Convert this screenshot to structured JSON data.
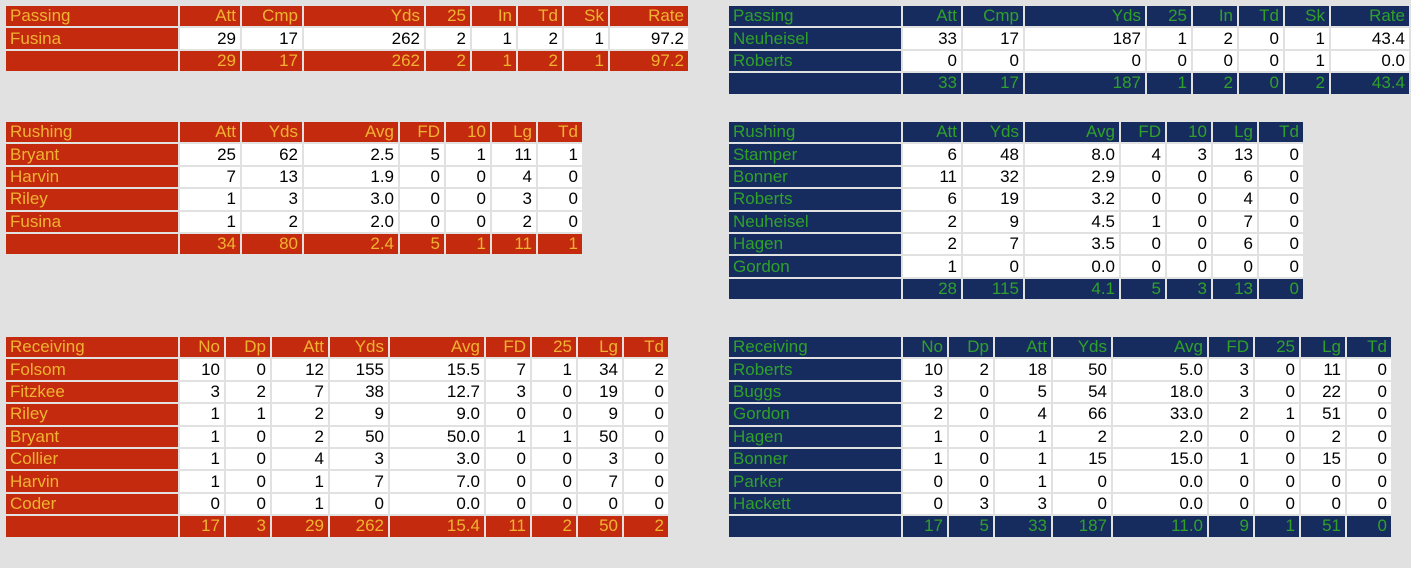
{
  "colors": {
    "background": "#e1e1e1",
    "team_a_fill": "#c42b0e",
    "team_a_text": "#f0b331",
    "team_b_fill": "#172c5e",
    "team_b_text": "#2fa12a",
    "cell_fill": "#ffffff",
    "cell_text": "#000000"
  },
  "tables": [
    {
      "id": "a-passing",
      "team": "a",
      "title": "Passing",
      "columns": [
        "Att",
        "Cmp",
        "Yds",
        "25",
        "In",
        "Td",
        "Sk",
        "Rate"
      ],
      "rows": [
        {
          "name": "Fusina",
          "values": [
            "29",
            "17",
            "262",
            "2",
            "1",
            "2",
            "1",
            "97.2"
          ]
        }
      ],
      "total": [
        "29",
        "17",
        "262",
        "2",
        "1",
        "2",
        "1",
        "97.2"
      ]
    },
    {
      "id": "b-passing",
      "team": "b",
      "title": "Passing",
      "columns": [
        "Att",
        "Cmp",
        "Yds",
        "25",
        "In",
        "Td",
        "Sk",
        "Rate"
      ],
      "rows": [
        {
          "name": "Neuheisel",
          "values": [
            "33",
            "17",
            "187",
            "1",
            "2",
            "0",
            "1",
            "43.4"
          ]
        },
        {
          "name": "Roberts",
          "values": [
            "0",
            "0",
            "0",
            "0",
            "0",
            "0",
            "1",
            "0.0"
          ]
        }
      ],
      "total": [
        "33",
        "17",
        "187",
        "1",
        "2",
        "0",
        "2",
        "43.4"
      ]
    },
    {
      "id": "a-rushing",
      "team": "a",
      "title": "Rushing",
      "columns": [
        "Att",
        "Yds",
        "Avg",
        "FD",
        "10",
        "Lg",
        "Td"
      ],
      "rows": [
        {
          "name": "Bryant",
          "values": [
            "25",
            "62",
            "2.5",
            "5",
            "1",
            "11",
            "1"
          ]
        },
        {
          "name": "Harvin",
          "values": [
            "7",
            "13",
            "1.9",
            "0",
            "0",
            "4",
            "0"
          ]
        },
        {
          "name": "Riley",
          "values": [
            "1",
            "3",
            "3.0",
            "0",
            "0",
            "3",
            "0"
          ]
        },
        {
          "name": "Fusina",
          "values": [
            "1",
            "2",
            "2.0",
            "0",
            "0",
            "2",
            "0"
          ]
        }
      ],
      "total": [
        "34",
        "80",
        "2.4",
        "5",
        "1",
        "11",
        "1"
      ]
    },
    {
      "id": "b-rushing",
      "team": "b",
      "title": "Rushing",
      "columns": [
        "Att",
        "Yds",
        "Avg",
        "FD",
        "10",
        "Lg",
        "Td"
      ],
      "rows": [
        {
          "name": "Stamper",
          "values": [
            "6",
            "48",
            "8.0",
            "4",
            "3",
            "13",
            "0"
          ]
        },
        {
          "name": "Bonner",
          "values": [
            "11",
            "32",
            "2.9",
            "0",
            "0",
            "6",
            "0"
          ]
        },
        {
          "name": "Roberts",
          "values": [
            "6",
            "19",
            "3.2",
            "0",
            "0",
            "4",
            "0"
          ]
        },
        {
          "name": "Neuheisel",
          "values": [
            "2",
            "9",
            "4.5",
            "1",
            "0",
            "7",
            "0"
          ]
        },
        {
          "name": "Hagen",
          "values": [
            "2",
            "7",
            "3.5",
            "0",
            "0",
            "6",
            "0"
          ]
        },
        {
          "name": "Gordon",
          "values": [
            "1",
            "0",
            "0.0",
            "0",
            "0",
            "0",
            "0"
          ]
        }
      ],
      "total": [
        "28",
        "115",
        "4.1",
        "5",
        "3",
        "13",
        "0"
      ]
    },
    {
      "id": "a-receiving",
      "team": "a",
      "title": "Receiving",
      "columns": [
        "No",
        "Dp",
        "Att",
        "Yds",
        "Avg",
        "FD",
        "25",
        "Lg",
        "Td"
      ],
      "rows": [
        {
          "name": "Folsom",
          "values": [
            "10",
            "0",
            "12",
            "155",
            "15.5",
            "7",
            "1",
            "34",
            "2"
          ]
        },
        {
          "name": "Fitzkee",
          "values": [
            "3",
            "2",
            "7",
            "38",
            "12.7",
            "3",
            "0",
            "19",
            "0"
          ]
        },
        {
          "name": "Riley",
          "values": [
            "1",
            "1",
            "2",
            "9",
            "9.0",
            "0",
            "0",
            "9",
            "0"
          ]
        },
        {
          "name": "Bryant",
          "values": [
            "1",
            "0",
            "2",
            "50",
            "50.0",
            "1",
            "1",
            "50",
            "0"
          ]
        },
        {
          "name": "Collier",
          "values": [
            "1",
            "0",
            "4",
            "3",
            "3.0",
            "0",
            "0",
            "3",
            "0"
          ]
        },
        {
          "name": "Harvin",
          "values": [
            "1",
            "0",
            "1",
            "7",
            "7.0",
            "0",
            "0",
            "7",
            "0"
          ]
        },
        {
          "name": "Coder",
          "values": [
            "0",
            "0",
            "1",
            "0",
            "0.0",
            "0",
            "0",
            "0",
            "0"
          ]
        }
      ],
      "total": [
        "17",
        "3",
        "29",
        "262",
        "15.4",
        "11",
        "2",
        "50",
        "2"
      ]
    },
    {
      "id": "b-receiving",
      "team": "b",
      "title": "Receiving",
      "columns": [
        "No",
        "Dp",
        "Att",
        "Yds",
        "Avg",
        "FD",
        "25",
        "Lg",
        "Td"
      ],
      "rows": [
        {
          "name": "Roberts",
          "values": [
            "10",
            "2",
            "18",
            "50",
            "5.0",
            "3",
            "0",
            "11",
            "0"
          ]
        },
        {
          "name": "Buggs",
          "values": [
            "3",
            "0",
            "5",
            "54",
            "18.0",
            "3",
            "0",
            "22",
            "0"
          ]
        },
        {
          "name": "Gordon",
          "values": [
            "2",
            "0",
            "4",
            "66",
            "33.0",
            "2",
            "1",
            "51",
            "0"
          ]
        },
        {
          "name": "Hagen",
          "values": [
            "1",
            "0",
            "1",
            "2",
            "2.0",
            "0",
            "0",
            "2",
            "0"
          ]
        },
        {
          "name": "Bonner",
          "values": [
            "1",
            "0",
            "1",
            "15",
            "15.0",
            "1",
            "0",
            "15",
            "0"
          ]
        },
        {
          "name": "Parker",
          "values": [
            "0",
            "0",
            "1",
            "0",
            "0.0",
            "0",
            "0",
            "0",
            "0"
          ]
        },
        {
          "name": "Hackett",
          "values": [
            "0",
            "3",
            "3",
            "0",
            "0.0",
            "0",
            "0",
            "0",
            "0"
          ]
        }
      ],
      "total": [
        "17",
        "5",
        "33",
        "187",
        "11.0",
        "9",
        "1",
        "51",
        "0"
      ]
    }
  ]
}
